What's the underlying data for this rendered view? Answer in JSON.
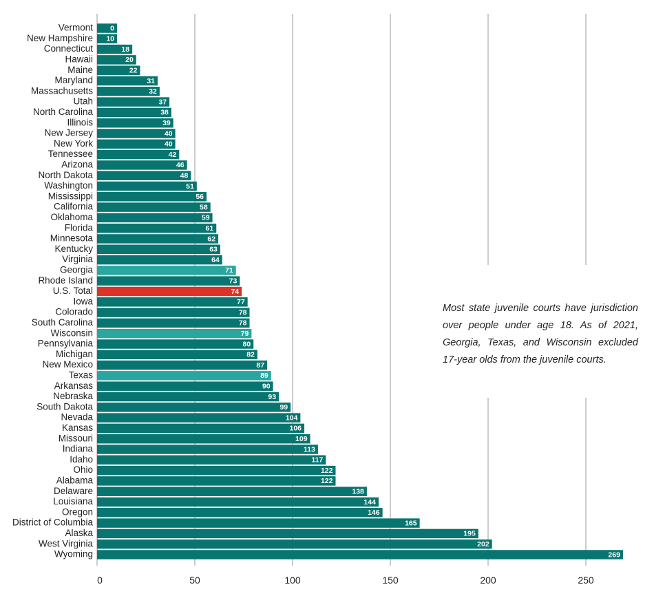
{
  "chart_data": {
    "type": "bar",
    "orientation": "horizontal",
    "categories": [
      "Vermont",
      "New Hampshire",
      "Connecticut",
      "Hawaii",
      "Maine",
      "Maryland",
      "Massachusetts",
      "Utah",
      "North Carolina",
      "Illinois",
      "New Jersey",
      "New York",
      "Tennessee",
      "Arizona",
      "North Dakota",
      "Washington",
      "Mississippi",
      "California",
      "Oklahoma",
      "Florida",
      "Minnesota",
      "Kentucky",
      "Virginia",
      "Georgia",
      "Rhode Island",
      "U.S. Total",
      "Iowa",
      "Colorado",
      "South Carolina",
      "Wisconsin",
      "Pennsylvania",
      "Michigan",
      "New Mexico",
      "Texas",
      "Arkansas",
      "Nebraska",
      "South Dakota",
      "Nevada",
      "Kansas",
      "Missouri",
      "Indiana",
      "Idaho",
      "Ohio",
      "Alabama",
      "Delaware",
      "Louisiana",
      "Oregon",
      "District of Columbia",
      "Alaska",
      "West Virginia",
      "Wyoming"
    ],
    "values": [
      0,
      10,
      18,
      20,
      22,
      31,
      32,
      37,
      38,
      39,
      40,
      40,
      42,
      46,
      48,
      51,
      56,
      58,
      59,
      61,
      62,
      63,
      64,
      71,
      73,
      74,
      77,
      78,
      78,
      79,
      80,
      82,
      87,
      89,
      90,
      93,
      99,
      104,
      106,
      109,
      113,
      117,
      122,
      122,
      138,
      144,
      146,
      165,
      195,
      202,
      269
    ],
    "highlight": {
      "Georgia": "excluded",
      "Wisconsin": "excluded",
      "Texas": "excluded",
      "U.S. Total": "total"
    },
    "colors": {
      "default": "#087570",
      "excluded": "#28a69f",
      "total": "#dc3329"
    },
    "xticks": [
      0,
      50,
      100,
      150,
      200,
      250
    ],
    "xlim": [
      0,
      272
    ],
    "grid": true,
    "annotation": "Most state juvenile courts have jurisdiction over people under age 18. As of 2021, Georgia, Texas, and Wisconsin excluded 17-year olds from the juvenile courts."
  }
}
